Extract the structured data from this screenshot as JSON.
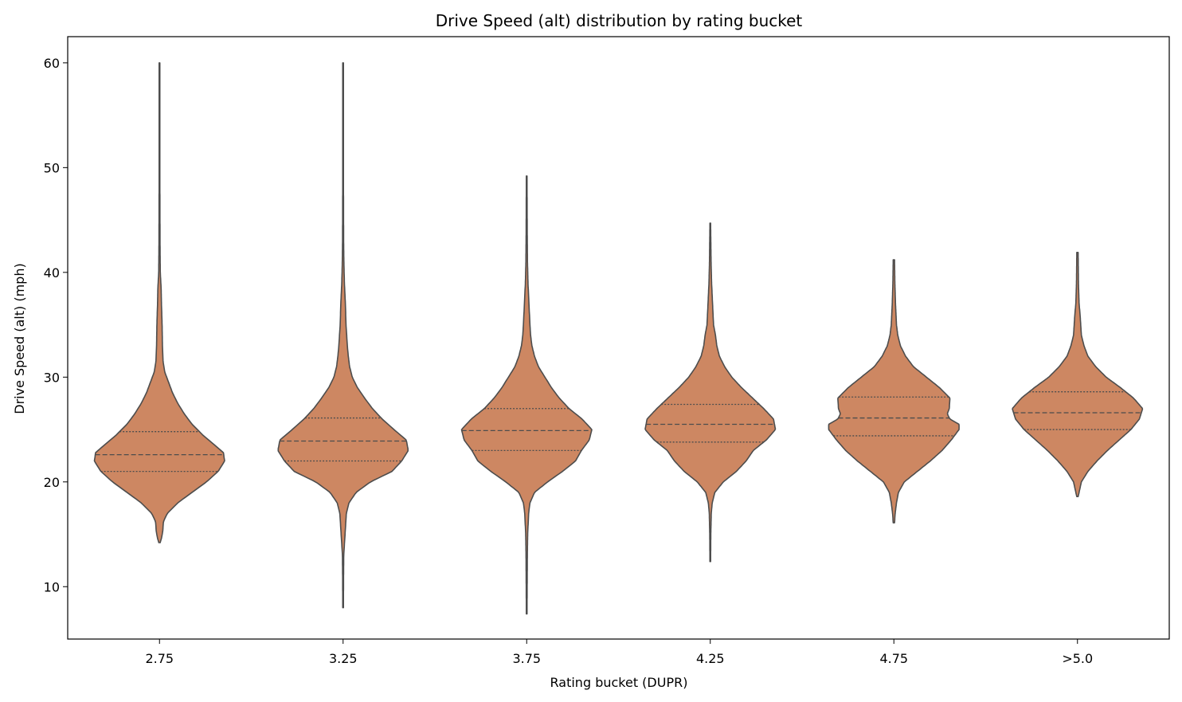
{
  "chart_data": {
    "type": "violin",
    "title": "Drive Speed (alt) distribution by rating bucket",
    "xlabel": "Rating bucket (DUPR)",
    "ylabel": "Drive Speed (alt) (mph)",
    "ylim": [
      5,
      62.5
    ],
    "yticks": [
      10,
      20,
      30,
      40,
      50,
      60
    ],
    "grid": false,
    "fill_color": "#cd8762",
    "line_color": "#4d4d4d",
    "categories": [
      "2.75",
      "3.25",
      "3.75",
      "4.25",
      "4.75",
      ">5.0"
    ],
    "violins": [
      {
        "category": "2.75",
        "min": 14.2,
        "max": 60,
        "q1": 21.0,
        "median": 22.6,
        "q3": 24.8,
        "profile": [
          [
            14.2,
            0.01
          ],
          [
            14.6,
            0.03
          ],
          [
            15.3,
            0.05
          ],
          [
            16.2,
            0.06
          ],
          [
            17.0,
            0.12
          ],
          [
            18.0,
            0.28
          ],
          [
            19.0,
            0.5
          ],
          [
            20.0,
            0.72
          ],
          [
            21.0,
            0.9
          ],
          [
            22.0,
            1.0
          ],
          [
            22.8,
            0.98
          ],
          [
            23.5,
            0.85
          ],
          [
            24.5,
            0.66
          ],
          [
            25.5,
            0.5
          ],
          [
            26.5,
            0.38
          ],
          [
            27.5,
            0.28
          ],
          [
            28.5,
            0.2
          ],
          [
            29.5,
            0.14
          ],
          [
            30.5,
            0.08
          ],
          [
            31.5,
            0.055
          ],
          [
            33,
            0.045
          ],
          [
            35,
            0.04
          ],
          [
            37,
            0.03
          ],
          [
            38.5,
            0.025
          ],
          [
            40,
            0.012
          ],
          [
            43,
            0.008
          ],
          [
            50,
            0.005
          ],
          [
            60,
            0.005
          ]
        ]
      },
      {
        "category": "3.25",
        "min": 8.0,
        "max": 60,
        "q1": 22.0,
        "median": 23.9,
        "q3": 26.1,
        "profile": [
          [
            8.0,
            0.005
          ],
          [
            11,
            0.007
          ],
          [
            13,
            0.01
          ],
          [
            14,
            0.02
          ],
          [
            15,
            0.03
          ],
          [
            16,
            0.04
          ],
          [
            17,
            0.05
          ],
          [
            18,
            0.09
          ],
          [
            19,
            0.2
          ],
          [
            20,
            0.42
          ],
          [
            21,
            0.75
          ],
          [
            22,
            0.9
          ],
          [
            23,
            1.0
          ],
          [
            24,
            0.97
          ],
          [
            25,
            0.78
          ],
          [
            26,
            0.6
          ],
          [
            27,
            0.45
          ],
          [
            28,
            0.33
          ],
          [
            29,
            0.22
          ],
          [
            30,
            0.14
          ],
          [
            31,
            0.1
          ],
          [
            32,
            0.08
          ],
          [
            33,
            0.065
          ],
          [
            34,
            0.055
          ],
          [
            35,
            0.045
          ],
          [
            37,
            0.035
          ],
          [
            39,
            0.02
          ],
          [
            41,
            0.012
          ],
          [
            43,
            0.008
          ],
          [
            50,
            0.005
          ],
          [
            60,
            0.005
          ]
        ]
      },
      {
        "category": "3.75",
        "min": 7.4,
        "max": 49.2,
        "q1": 23.0,
        "median": 24.9,
        "q3": 27.0,
        "profile": [
          [
            7.4,
            0.005
          ],
          [
            10,
            0.007
          ],
          [
            13,
            0.01
          ],
          [
            15,
            0.015
          ],
          [
            17,
            0.03
          ],
          [
            18,
            0.05
          ],
          [
            19,
            0.12
          ],
          [
            20,
            0.32
          ],
          [
            21,
            0.55
          ],
          [
            22,
            0.75
          ],
          [
            23,
            0.84
          ],
          [
            24,
            0.96
          ],
          [
            25,
            1.0
          ],
          [
            26,
            0.85
          ],
          [
            27,
            0.65
          ],
          [
            28,
            0.5
          ],
          [
            29,
            0.38
          ],
          [
            30,
            0.28
          ],
          [
            31,
            0.18
          ],
          [
            32,
            0.12
          ],
          [
            33,
            0.08
          ],
          [
            34,
            0.06
          ],
          [
            35,
            0.05
          ],
          [
            37,
            0.035
          ],
          [
            39,
            0.02
          ],
          [
            41,
            0.012
          ],
          [
            44,
            0.008
          ],
          [
            49.2,
            0.005
          ]
        ]
      },
      {
        "category": "4.25",
        "min": 12.4,
        "max": 44.7,
        "q1": 23.8,
        "median": 25.5,
        "q3": 27.4,
        "profile": [
          [
            12.4,
            0.005
          ],
          [
            15,
            0.008
          ],
          [
            17,
            0.015
          ],
          [
            18,
            0.03
          ],
          [
            19,
            0.07
          ],
          [
            20,
            0.2
          ],
          [
            21,
            0.4
          ],
          [
            22,
            0.55
          ],
          [
            23,
            0.66
          ],
          [
            24,
            0.86
          ],
          [
            25,
            1.0
          ],
          [
            26,
            0.97
          ],
          [
            27,
            0.82
          ],
          [
            28,
            0.65
          ],
          [
            29,
            0.48
          ],
          [
            30,
            0.33
          ],
          [
            31,
            0.22
          ],
          [
            32,
            0.14
          ],
          [
            33,
            0.1
          ],
          [
            34,
            0.08
          ],
          [
            35,
            0.05
          ],
          [
            37,
            0.035
          ],
          [
            39,
            0.02
          ],
          [
            41,
            0.012
          ],
          [
            44.7,
            0.005
          ]
        ]
      },
      {
        "category": "4.75",
        "min": 16.1,
        "max": 41.2,
        "q1": 24.4,
        "median": 26.1,
        "q3": 28.1,
        "profile": [
          [
            16.1,
            0.01
          ],
          [
            17,
            0.02
          ],
          [
            18,
            0.04
          ],
          [
            19,
            0.07
          ],
          [
            20,
            0.16
          ],
          [
            21,
            0.36
          ],
          [
            22,
            0.56
          ],
          [
            23,
            0.74
          ],
          [
            24,
            0.88
          ],
          [
            25,
            1.0
          ],
          [
            25.5,
            1.0
          ],
          [
            26,
            0.86
          ],
          [
            26.5,
            0.82
          ],
          [
            27,
            0.85
          ],
          [
            28,
            0.86
          ],
          [
            29,
            0.7
          ],
          [
            30,
            0.5
          ],
          [
            31,
            0.3
          ],
          [
            32,
            0.18
          ],
          [
            33,
            0.1
          ],
          [
            34,
            0.06
          ],
          [
            35,
            0.04
          ],
          [
            37,
            0.025
          ],
          [
            39,
            0.015
          ],
          [
            41.2,
            0.01
          ]
        ]
      },
      {
        "category": ">5.0",
        "min": 18.6,
        "max": 41.9,
        "q1": 25.0,
        "median": 26.6,
        "q3": 28.6,
        "profile": [
          [
            18.6,
            0.01
          ],
          [
            19,
            0.025
          ],
          [
            20,
            0.06
          ],
          [
            21,
            0.16
          ],
          [
            22,
            0.3
          ],
          [
            23,
            0.46
          ],
          [
            24,
            0.64
          ],
          [
            25,
            0.82
          ],
          [
            26,
            0.95
          ],
          [
            27,
            1.0
          ],
          [
            28,
            0.86
          ],
          [
            29,
            0.66
          ],
          [
            30,
            0.44
          ],
          [
            31,
            0.28
          ],
          [
            32,
            0.16
          ],
          [
            33,
            0.1
          ],
          [
            34,
            0.06
          ],
          [
            35,
            0.05
          ],
          [
            36,
            0.04
          ],
          [
            37,
            0.025
          ],
          [
            39,
            0.015
          ],
          [
            41.9,
            0.01
          ]
        ]
      }
    ]
  }
}
